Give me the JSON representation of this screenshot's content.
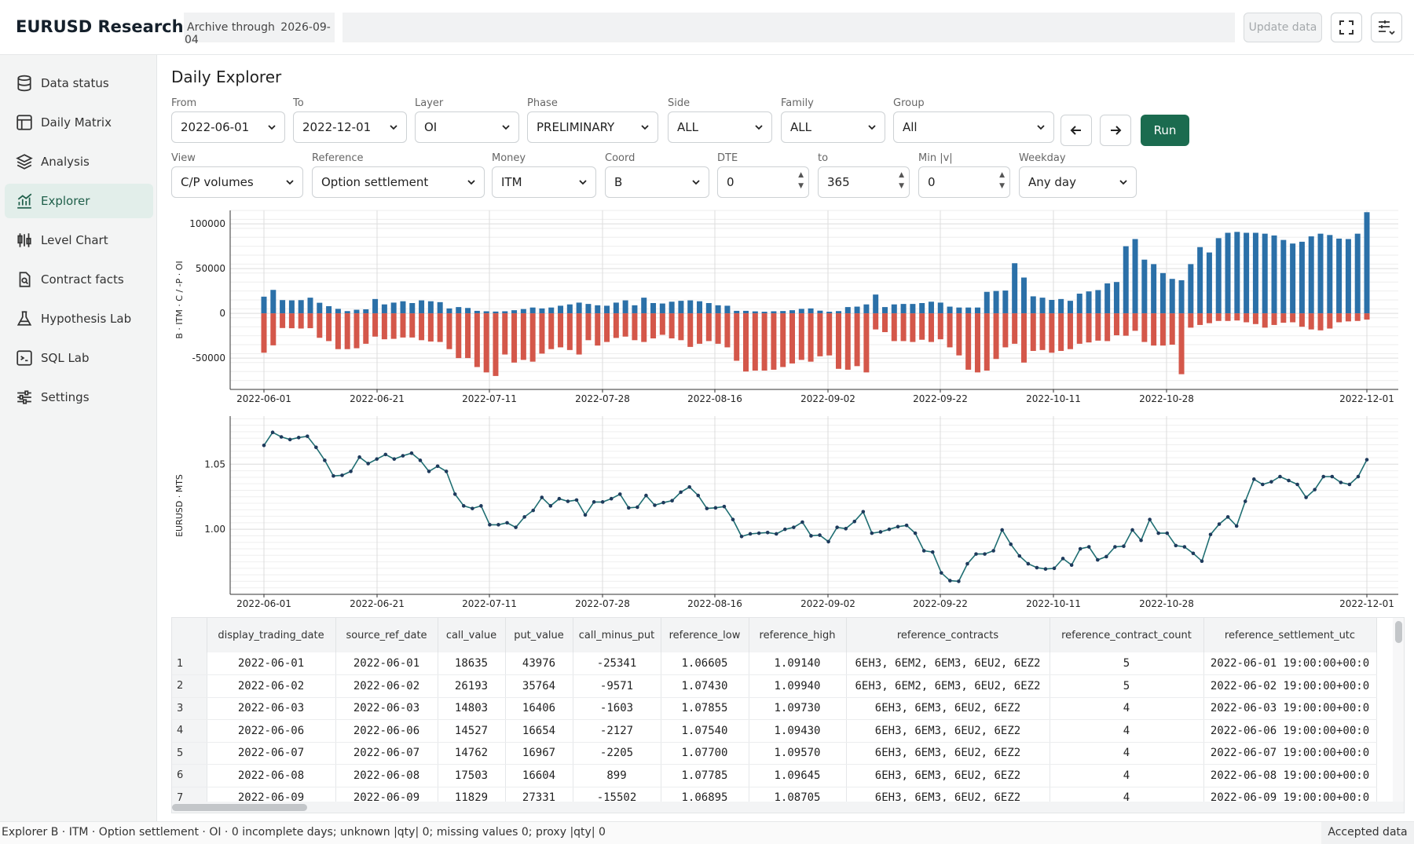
{
  "app": {
    "title": "EURUSD Research",
    "archive_label": "Archive through",
    "archive_date": "2026-09-04",
    "update_button": "Update data"
  },
  "sidebar": {
    "items": [
      {
        "label": "Data status",
        "icon": "database-icon"
      },
      {
        "label": "Daily Matrix",
        "icon": "table-icon"
      },
      {
        "label": "Analysis",
        "icon": "layers-icon"
      },
      {
        "label": "Explorer",
        "icon": "chart-line-icon",
        "active": true
      },
      {
        "label": "Level Chart",
        "icon": "candlestick-icon"
      },
      {
        "label": "Contract facts",
        "icon": "file-search-icon"
      },
      {
        "label": "Hypothesis Lab",
        "icon": "flask-icon"
      },
      {
        "label": "SQL Lab",
        "icon": "terminal-icon"
      },
      {
        "label": "Settings",
        "icon": "sliders-icon"
      }
    ]
  },
  "page": {
    "title": "Daily Explorer"
  },
  "filters": {
    "row1": [
      {
        "label": "From",
        "value": "2022-06-01"
      },
      {
        "label": "To",
        "value": "2022-12-01"
      },
      {
        "label": "Layer",
        "value": "OI"
      },
      {
        "label": "Phase",
        "value": "PRELIMINARY"
      },
      {
        "label": "Side",
        "value": "ALL"
      },
      {
        "label": "Family",
        "value": "ALL"
      },
      {
        "label": "Group",
        "value": "All"
      }
    ],
    "row2": [
      {
        "label": "View",
        "value": "C/P volumes"
      },
      {
        "label": "Reference",
        "value": "Option settlement"
      },
      {
        "label": "Money",
        "value": "ITM"
      },
      {
        "label": "Coord",
        "value": "B"
      },
      {
        "label": "DTE",
        "value": "0"
      },
      {
        "label": "to",
        "value": "365"
      },
      {
        "label": "Min |v|",
        "value": "0"
      },
      {
        "label": "Weekday",
        "value": "Any day"
      }
    ],
    "run_label": "Run"
  },
  "colors": {
    "accent": "#1b6b4f",
    "call": "#2b70a8",
    "put": "#d4574a",
    "line": "#1f6e72"
  },
  "chart_data": [
    {
      "type": "bar",
      "ylabel": "B · ITM · C / -P · OI",
      "ylim": [
        -85000,
        115000
      ],
      "yticks": [
        100000,
        50000,
        0,
        -50000
      ],
      "xticks": [
        "2022-06-01",
        "2022-06-21",
        "2022-07-11",
        "2022-07-28",
        "2022-08-16",
        "2022-09-02",
        "2022-09-22",
        "2022-10-11",
        "2022-10-28",
        "2022-12-01"
      ],
      "series": [
        {
          "values": [
            18635,
            26193,
            14803,
            14527,
            14762,
            17503,
            11829,
            8000,
            5000,
            2500,
            4000,
            4500,
            16000,
            10000,
            12000,
            13500,
            11500,
            14500,
            13500,
            12500,
            5500,
            7000,
            6000,
            2800,
            2300,
            2000,
            2300,
            3500,
            4800,
            6500,
            5500,
            6500,
            8500,
            10000,
            12000,
            10500,
            9000,
            8500,
            12000,
            14500,
            9000,
            17500,
            11500,
            11000,
            13000,
            14000,
            14500,
            13500,
            11500,
            9000,
            8500,
            2800,
            2800,
            2200,
            1800,
            2300,
            2600,
            3500,
            5000,
            5500,
            3000,
            1800,
            2500,
            7000,
            7500,
            10000,
            21000,
            7000,
            10000,
            10500,
            10500,
            11500,
            13000,
            12000,
            7500,
            6500,
            6500,
            6500,
            24000,
            25000,
            25500,
            56000,
            40000,
            19000,
            17500,
            15000,
            16000,
            14000,
            22000,
            24500,
            26000,
            33500,
            35000,
            75000,
            83000,
            60000,
            55000,
            45000,
            38500,
            37000,
            55000,
            74000,
            68000,
            84000,
            90000,
            91000,
            90000,
            90000,
            89000,
            87000,
            82000,
            78000,
            80000,
            86000,
            89000,
            87500,
            83500,
            83000,
            89000,
            113000
          ]
        },
        {
          "values": [
            -43976,
            -35764,
            -16406,
            -16654,
            -16967,
            -16604,
            -27331,
            -31000,
            -40000,
            -40000,
            -39000,
            -34000,
            -26000,
            -29000,
            -28500,
            -27000,
            -27000,
            -30000,
            -31500,
            -32000,
            -40000,
            -50000,
            -50000,
            -60000,
            -66000,
            -70000,
            -46000,
            -55000,
            -52000,
            -54000,
            -45000,
            -40000,
            -38000,
            -41000,
            -46000,
            -30000,
            -36000,
            -32000,
            -27500,
            -26000,
            -30000,
            -32000,
            -28000,
            -24000,
            -28000,
            -30000,
            -37500,
            -34000,
            -31000,
            -34000,
            -38000,
            -53000,
            -65000,
            -64000,
            -64000,
            -63000,
            -60000,
            -56000,
            -52000,
            -54000,
            -48000,
            -47000,
            -62000,
            -63000,
            -59000,
            -66000,
            -18000,
            -21000,
            -31000,
            -31000,
            -32000,
            -29500,
            -32000,
            -29000,
            -38000,
            -47000,
            -63000,
            -66000,
            -64000,
            -51000,
            -38000,
            -34000,
            -55000,
            -42000,
            -41000,
            -44000,
            -42000,
            -40000,
            -34000,
            -32500,
            -30500,
            -31000,
            -24500,
            -25000,
            -19500,
            -32000,
            -36000,
            -36000,
            -35000,
            -68000,
            -16000,
            -13000,
            -11000,
            -8500,
            -8500,
            -8000,
            -10000,
            -12000,
            -16000,
            -13000,
            -10500,
            -10000,
            -15000,
            -18000,
            -19000,
            -17000,
            -10000,
            -9000,
            -8500,
            -7000
          ]
        }
      ]
    },
    {
      "type": "line",
      "ylabel": "EURUSD · MTS",
      "ylim": [
        0.95,
        1.087
      ],
      "yticks": [
        1.05,
        1.0
      ],
      "xticks": [
        "2022-06-01",
        "2022-06-21",
        "2022-07-11",
        "2022-07-28",
        "2022-08-16",
        "2022-09-02",
        "2022-09-22",
        "2022-10-11",
        "2022-10-28",
        "2022-12-01"
      ],
      "values": [
        1.0645,
        1.0745,
        1.071,
        1.069,
        1.0705,
        1.0715,
        1.063,
        1.053,
        1.041,
        1.0415,
        1.0445,
        1.0555,
        1.0505,
        1.054,
        1.0575,
        1.054,
        1.0565,
        1.0585,
        1.053,
        1.0445,
        1.0485,
        1.0445,
        1.027,
        1.018,
        1.016,
        1.018,
        1.0035,
        1.0035,
        1.005,
        1.0015,
        1.0095,
        1.0145,
        1.0245,
        1.018,
        1.0235,
        1.0215,
        1.0225,
        1.011,
        1.021,
        1.021,
        1.0235,
        1.027,
        1.0165,
        1.017,
        1.026,
        1.0185,
        1.0205,
        1.022,
        1.0285,
        1.0325,
        1.026,
        1.016,
        1.0165,
        1.0175,
        1.0075,
        0.9945,
        0.9965,
        0.997,
        0.9975,
        0.9965,
        1.0,
        1.0015,
        1.0055,
        0.995,
        0.9955,
        0.9905,
        1.0015,
        1.0005,
        1.006,
        1.0135,
        0.997,
        0.998,
        1.0,
        1.002,
        1.003,
        0.997,
        0.9835,
        0.9825,
        0.9665,
        0.9605,
        0.96,
        0.9735,
        0.981,
        0.981,
        0.9835,
        0.9995,
        0.9885,
        0.9795,
        0.9735,
        0.9705,
        0.9695,
        0.97,
        0.9775,
        0.9725,
        0.985,
        0.9865,
        0.9765,
        0.979,
        0.9865,
        0.987,
        0.9995,
        0.9915,
        1.0075,
        0.997,
        0.997,
        0.9875,
        0.9865,
        0.9815,
        0.9755,
        0.996,
        1.004,
        1.0095,
        1.0025,
        1.0215,
        1.0385,
        1.0345,
        1.0365,
        1.0405,
        1.0375,
        1.0345,
        1.0245,
        1.0305,
        1.0405,
        1.0405,
        1.036,
        1.0345,
        1.0405,
        1.0535
      ]
    }
  ],
  "table": {
    "columns": [
      "display_trading_date",
      "source_ref_date",
      "call_value",
      "put_value",
      "call_minus_put",
      "reference_low",
      "reference_high",
      "reference_contracts",
      "reference_contract_count",
      "reference_settlement_utc"
    ],
    "rows": [
      [
        "1",
        "2022-06-01",
        "2022-06-01",
        "18635",
        "43976",
        "-25341",
        "1.06605",
        "1.09140",
        "6EH3, 6EM2, 6EM3, 6EU2, 6EZ2",
        "5",
        "2022-06-01 19:00:00+00:0"
      ],
      [
        "2",
        "2022-06-02",
        "2022-06-02",
        "26193",
        "35764",
        "-9571",
        "1.07430",
        "1.09940",
        "6EH3, 6EM2, 6EM3, 6EU2, 6EZ2",
        "5",
        "2022-06-02 19:00:00+00:0"
      ],
      [
        "3",
        "2022-06-03",
        "2022-06-03",
        "14803",
        "16406",
        "-1603",
        "1.07855",
        "1.09730",
        "6EH3, 6EM3, 6EU2, 6EZ2",
        "4",
        "2022-06-03 19:00:00+00:0"
      ],
      [
        "4",
        "2022-06-06",
        "2022-06-06",
        "14527",
        "16654",
        "-2127",
        "1.07540",
        "1.09430",
        "6EH3, 6EM3, 6EU2, 6EZ2",
        "4",
        "2022-06-06 19:00:00+00:0"
      ],
      [
        "5",
        "2022-06-07",
        "2022-06-07",
        "14762",
        "16967",
        "-2205",
        "1.07700",
        "1.09570",
        "6EH3, 6EM3, 6EU2, 6EZ2",
        "4",
        "2022-06-07 19:00:00+00:0"
      ],
      [
        "6",
        "2022-06-08",
        "2022-06-08",
        "17503",
        "16604",
        "899",
        "1.07785",
        "1.09645",
        "6EH3, 6EM3, 6EU2, 6EZ2",
        "4",
        "2022-06-08 19:00:00+00:0"
      ],
      [
        "7",
        "2022-06-09",
        "2022-06-09",
        "11829",
        "27331",
        "-15502",
        "1.06895",
        "1.08705",
        "6EH3, 6EM3, 6EU2, 6EZ2",
        "4",
        "2022-06-09 19:00:00+00:0"
      ]
    ]
  },
  "status": {
    "text": "Explorer B · ITM · Option settlement · OI · 0 incomplete days; unknown |qty| 0; missing values 0; proxy |qty| 0",
    "right": "Accepted data"
  }
}
